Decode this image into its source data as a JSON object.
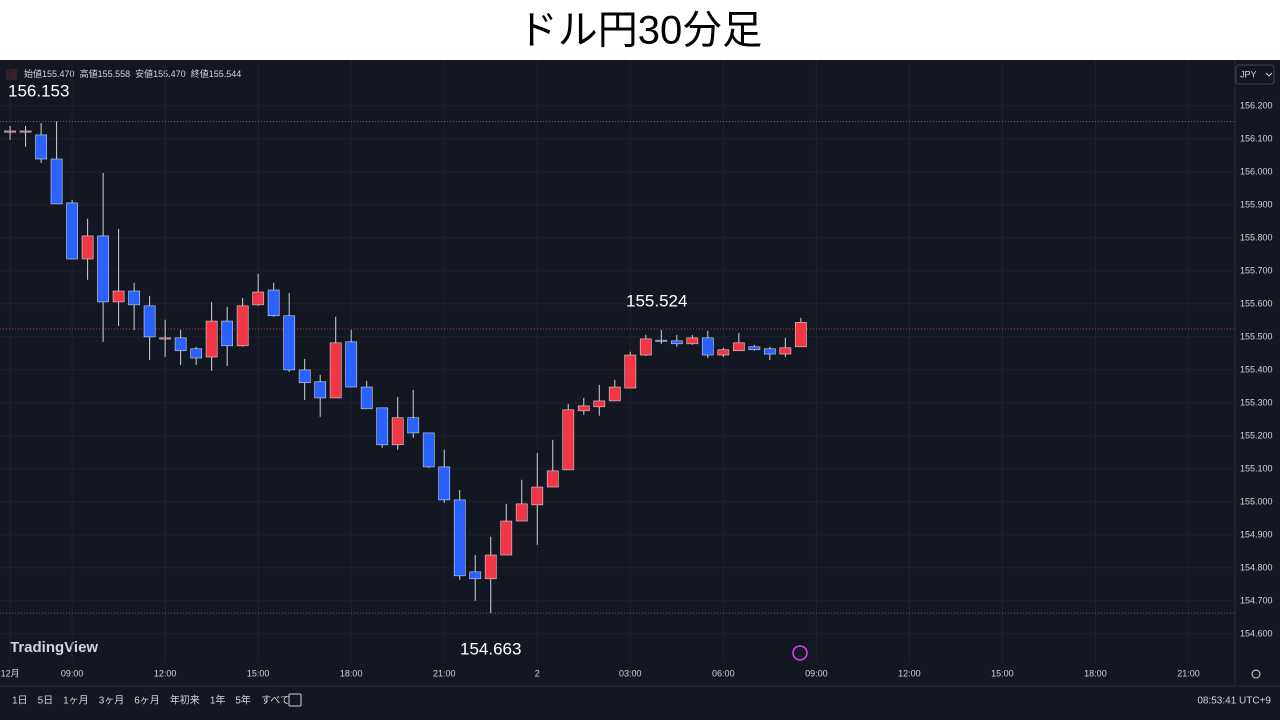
{
  "chart_data": {
    "type": "candlestick",
    "title": "ドル円30分足",
    "currency": "JPY",
    "ohlc_legend": [
      {
        "label": "始値",
        "value": "155.470"
      },
      {
        "label": "高値",
        "value": "155.558"
      },
      {
        "label": "安値",
        "value": "155.470"
      },
      {
        "label": "終値",
        "value": "155.544"
      }
    ],
    "open": [
      156.124,
      156.121,
      156.112,
      156.039,
      155.906,
      155.736,
      155.806,
      155.606,
      155.639,
      155.594,
      155.497,
      155.497,
      155.464,
      155.439,
      155.548,
      155.473,
      155.597,
      155.642,
      155.564,
      155.4,
      155.364,
      155.315,
      155.485,
      155.348,
      155.285,
      155.173,
      155.255,
      155.209,
      155.106,
      155.006,
      154.788,
      154.767,
      154.839,
      154.942,
      154.991,
      155.045,
      155.097,
      155.276,
      155.288,
      155.306,
      155.345,
      155.445,
      155.49,
      155.488,
      155.479,
      155.497,
      155.445,
      155.458,
      155.47,
      155.464,
      155.448,
      155.47
    ],
    "high": [
      156.139,
      156.139,
      156.148,
      156.153,
      155.915,
      155.858,
      155.997,
      155.827,
      155.664,
      155.624,
      155.552,
      155.521,
      155.47,
      155.606,
      155.591,
      155.618,
      155.691,
      155.664,
      155.633,
      155.433,
      155.385,
      155.561,
      155.521,
      155.367,
      155.285,
      155.318,
      155.339,
      155.209,
      155.158,
      155.036,
      154.839,
      154.894,
      154.994,
      155.067,
      155.148,
      155.188,
      155.297,
      155.315,
      155.355,
      155.37,
      155.455,
      155.506,
      155.521,
      155.506,
      155.506,
      155.518,
      155.467,
      155.512,
      155.476,
      155.47,
      155.497,
      155.558
    ],
    "low": [
      156.097,
      156.076,
      156.027,
      155.903,
      155.736,
      155.673,
      155.485,
      155.533,
      155.521,
      155.43,
      155.439,
      155.415,
      155.415,
      155.397,
      155.412,
      155.47,
      155.594,
      155.561,
      155.394,
      155.309,
      155.258,
      155.315,
      155.348,
      155.282,
      155.164,
      155.158,
      155.194,
      155.103,
      154.997,
      154.764,
      154.7,
      154.663,
      154.839,
      154.942,
      154.87,
      155.045,
      155.097,
      155.264,
      155.261,
      155.306,
      155.345,
      155.442,
      155.479,
      155.47,
      155.476,
      155.436,
      155.439,
      155.458,
      155.458,
      155.43,
      155.439,
      155.47
    ],
    "close": [
      156.124,
      156.124,
      156.039,
      155.903,
      155.736,
      155.806,
      155.606,
      155.639,
      155.597,
      155.5,
      155.497,
      155.458,
      155.436,
      155.548,
      155.473,
      155.594,
      155.636,
      155.564,
      155.4,
      155.361,
      155.315,
      155.482,
      155.348,
      155.282,
      155.173,
      155.255,
      155.209,
      155.106,
      155.006,
      154.776,
      154.767,
      154.839,
      154.942,
      154.994,
      155.045,
      155.094,
      155.279,
      155.291,
      155.306,
      155.348,
      155.445,
      155.494,
      155.488,
      155.479,
      155.497,
      155.445,
      155.461,
      155.482,
      155.461,
      155.448,
      155.467,
      155.544
    ],
    "up_color": "#f23645",
    "down_color": "#2962ff",
    "annotations": [
      156.153,
      155.524,
      154.663
    ],
    "ylim": [
      154.536,
      156.333
    ],
    "yticks": [
      {
        "value": 154.6,
        "label": "154.600"
      },
      {
        "value": 154.7,
        "label": "154.700"
      },
      {
        "value": 154.8,
        "label": "154.800"
      },
      {
        "value": 154.9,
        "label": "154.900"
      },
      {
        "value": 155.0,
        "label": "155.000"
      },
      {
        "value": 155.1,
        "label": "155.100"
      },
      {
        "value": 155.2,
        "label": "155.200"
      },
      {
        "value": 155.3,
        "label": "155.300"
      },
      {
        "value": 155.4,
        "label": "155.400"
      },
      {
        "value": 155.5,
        "label": "155.500"
      },
      {
        "value": 155.6,
        "label": "155.600"
      },
      {
        "value": 155.7,
        "label": "155.700"
      },
      {
        "value": 155.8,
        "label": "155.800"
      },
      {
        "value": 155.9,
        "label": "155.900"
      },
      {
        "value": 156.0,
        "label": "156.000"
      },
      {
        "value": 156.1,
        "label": "156.100"
      },
      {
        "value": 156.2,
        "label": "156.200"
      }
    ],
    "xlim": [
      -0.65,
      79
    ],
    "xticks": [
      {
        "value": 0,
        "label": "12月"
      },
      {
        "value": 4,
        "label": "09:00"
      },
      {
        "value": 10,
        "label": "12:00"
      },
      {
        "value": 16,
        "label": "15:00"
      },
      {
        "value": 22,
        "label": "18:00"
      },
      {
        "value": 28,
        "label": "21:00"
      },
      {
        "value": 34,
        "label": "2"
      },
      {
        "value": 40,
        "label": "03:00"
      },
      {
        "value": 46,
        "label": "06:00"
      },
      {
        "value": 52,
        "label": "09:00"
      },
      {
        "value": 58,
        "label": "12:00"
      },
      {
        "value": 64,
        "label": "15:00"
      },
      {
        "value": 70,
        "label": "18:00"
      },
      {
        "value": 76,
        "label": "21:00"
      }
    ],
    "grid": true,
    "logo": "TradingView",
    "ranges": [
      "1日",
      "5日",
      "1ヶ月",
      "3ヶ月",
      "6ヶ月",
      "年初来",
      "1年",
      "5年",
      "すべて"
    ],
    "clock": "08:53:41 UTC+9"
  }
}
